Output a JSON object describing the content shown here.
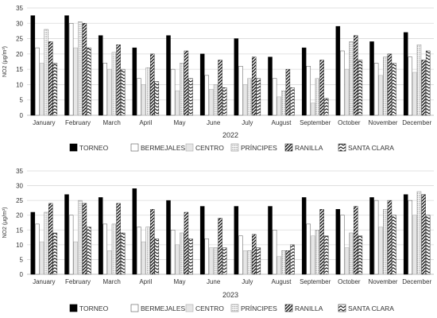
{
  "chart_data": [
    {
      "type": "bar",
      "title": "",
      "xlabel": "2022",
      "ylabel": "NO2 (μg/m³)",
      "ylim": [
        0,
        35
      ],
      "yticks": [
        0,
        5,
        10,
        15,
        20,
        25,
        30,
        35
      ],
      "grid": true,
      "legend_position": "bottom",
      "categories": [
        "January",
        "February",
        "March",
        "April",
        "May",
        "June",
        "July",
        "August",
        "September",
        "October",
        "November",
        "December"
      ],
      "series": [
        {
          "name": "TORNEO",
          "values": [
            32.5,
            32.5,
            26,
            22,
            26,
            20,
            25,
            19,
            22,
            29,
            24,
            27
          ]
        },
        {
          "name": "BERMEJALES",
          "values": [
            22,
            30,
            17,
            12,
            15,
            13,
            16,
            12,
            16,
            21,
            17,
            19
          ]
        },
        {
          "name": "CENTRO",
          "values": [
            17,
            22,
            15,
            10,
            8,
            8.5,
            10,
            6,
            4,
            15,
            13,
            14
          ]
        },
        {
          "name": "PRÍNCIPES",
          "values": [
            28,
            30.5,
            20.5,
            15.5,
            17,
            10,
            12,
            8,
            12,
            24,
            19,
            23
          ]
        },
        {
          "name": "RANILLA",
          "values": [
            24,
            30,
            23,
            20,
            21,
            18,
            19,
            15,
            18,
            26,
            20,
            18
          ]
        },
        {
          "name": "SANTA CLARA",
          "values": [
            17,
            22,
            15,
            11,
            12,
            9,
            12,
            9,
            5.5,
            18,
            17,
            21
          ]
        }
      ]
    },
    {
      "type": "bar",
      "title": "",
      "xlabel": "2023",
      "ylabel": "NO2 (μg/m³)",
      "ylim": [
        0,
        35
      ],
      "yticks": [
        0,
        5,
        10,
        15,
        20,
        25,
        30,
        35
      ],
      "grid": true,
      "legend_position": "bottom",
      "categories": [
        "January",
        "February",
        "March",
        "April",
        "May",
        "June",
        "July",
        "August",
        "September",
        "October",
        "November",
        "December"
      ],
      "series": [
        {
          "name": "TORNEO",
          "values": [
            21,
            27,
            26,
            29,
            25,
            23,
            23,
            23,
            26,
            22,
            26,
            27
          ]
        },
        {
          "name": "BERMEJALES",
          "values": [
            17,
            20,
            17,
            16,
            15,
            12,
            13,
            15,
            17,
            20,
            25,
            25
          ]
        },
        {
          "name": "CENTRO",
          "values": [
            11,
            11,
            8,
            11,
            10,
            9,
            8,
            6,
            13,
            9,
            16,
            20
          ]
        },
        {
          "name": "PRÍNCIPES",
          "values": [
            21,
            25,
            17,
            16,
            14,
            9,
            8,
            8,
            15,
            14,
            22,
            28
          ]
        },
        {
          "name": "RANILLA",
          "values": [
            24,
            24,
            24,
            22,
            21,
            19,
            13.5,
            8,
            22,
            23,
            25,
            27
          ]
        },
        {
          "name": "SANTA CLARA",
          "values": [
            14,
            16,
            14,
            12,
            12,
            9,
            9,
            10,
            13,
            13,
            20,
            20
          ]
        }
      ]
    }
  ]
}
